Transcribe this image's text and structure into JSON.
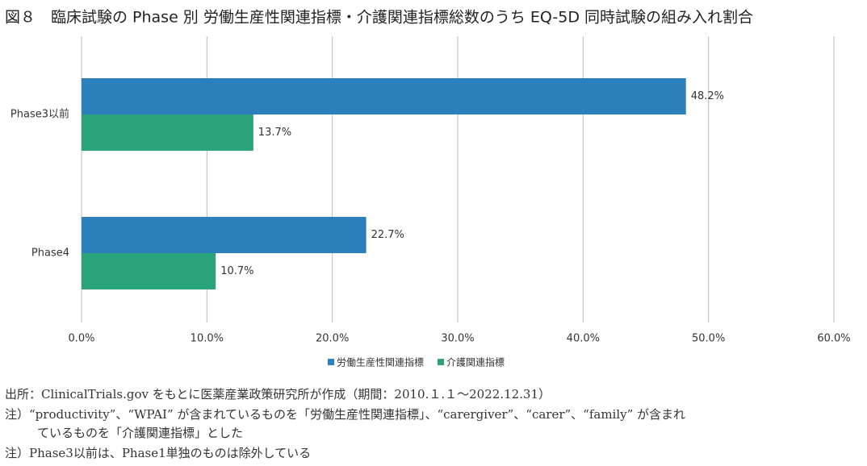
{
  "chart_data": {
    "type": "hbar",
    "title": "図８　臨床試験の Phase 別 労働生産性関連指標・介護関連指標総数のうち EQ-5D 同時試験の組み入れ割合",
    "categories": [
      "Phase3以前",
      "Phase4"
    ],
    "series": [
      {
        "name": "労働生産性関連指標",
        "color": "#2b7fba",
        "values": [
          48.2,
          22.7
        ],
        "value_labels": [
          "48.2%",
          "22.7%"
        ]
      },
      {
        "name": "介護関連指標",
        "color": "#2aa27a",
        "values": [
          13.7,
          10.7
        ],
        "value_labels": [
          "13.7%",
          "10.7%"
        ]
      }
    ],
    "xlim": [
      0,
      60
    ],
    "xticks": [
      {
        "value": 0,
        "label": "0.0%"
      },
      {
        "value": 10,
        "label": "10.0%"
      },
      {
        "value": 20,
        "label": "20.0%"
      },
      {
        "value": 30,
        "label": "30.0%"
      },
      {
        "value": 40,
        "label": "40.0%"
      },
      {
        "value": 50,
        "label": "50.0%"
      },
      {
        "value": 60,
        "label": "60.0%"
      }
    ],
    "grid": true,
    "notes": [
      "出所：ClinicalTrials.gov をもとに医薬産業政策研究所が作成（期間：2010.１.１～2022.12.31）",
      "注）“productivity”、“WPAI” が含まれているものを「労働生産性関連指標」、“carergiver”、“carer”、“family” が含まれ",
      "ているものを「介護関連指標」とした",
      "注）Phase3以前は、Phase1単独のものは除外している"
    ]
  }
}
